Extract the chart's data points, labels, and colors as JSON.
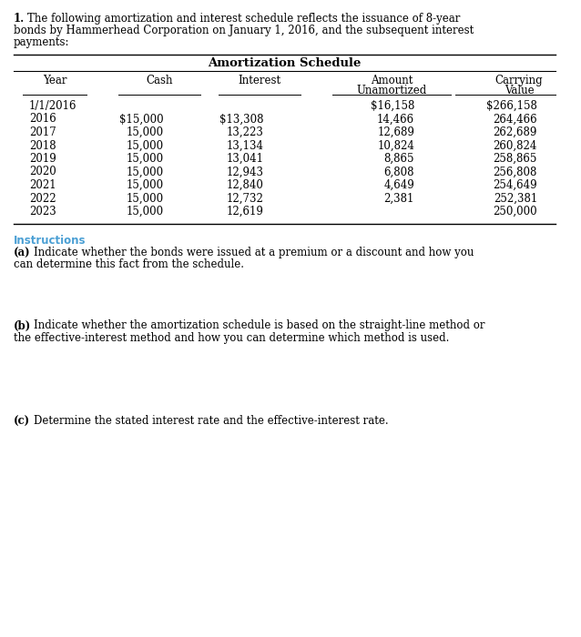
{
  "question_number": "1.",
  "question_text": "The following amortization and interest schedule reflects the issuance of 8-year\nbonds by Hammerhead Corporation on January 1, 2016, and the subsequent interest\npayments:",
  "table_title": "Amortization Schedule",
  "col_headers_line1": [
    "Year",
    "Cash",
    "Interest",
    "Amount",
    "Carrying"
  ],
  "col_headers_line2": [
    "",
    "",
    "",
    "Unamortized",
    "Value"
  ],
  "rows": [
    [
      "1/1/2016",
      "",
      "",
      "$16,158",
      "$266,158"
    ],
    [
      "2016",
      "$15,000",
      "$13,308",
      "14,466",
      "264,466"
    ],
    [
      "2017",
      "15,000",
      "13,223",
      "12,689",
      "262,689"
    ],
    [
      "2018",
      "15,000",
      "13,134",
      "10,824",
      "260,824"
    ],
    [
      "2019",
      "15,000",
      "13,041",
      "8,865",
      "258,865"
    ],
    [
      "2020",
      "15,000",
      "12,943",
      "6,808",
      "256,808"
    ],
    [
      "2021",
      "15,000",
      "12,840",
      "4,649",
      "254,649"
    ],
    [
      "2022",
      "15,000",
      "12,732",
      "2,381",
      "252,381"
    ],
    [
      "2023",
      "15,000",
      "12,619",
      "",
      "250,000"
    ]
  ],
  "instructions_label": "Instructions",
  "instructions_color": "#4a9fd4",
  "part_a_bold": "(a)",
  "part_a_line1": "Indicate whether the bonds were issued at a premium or a discount and how you",
  "part_a_line2": "can determine this fact from the schedule.",
  "part_b_bold": "(b)",
  "part_b_line1": "Indicate whether the amortization schedule is based on the straight-line method or",
  "part_b_line2": "the effective-interest method and how you can determine which method is used.",
  "part_c_bold": "(c)",
  "part_c_text": "Determine the stated interest rate and the effective-interest rate.",
  "bg_color": "#ffffff",
  "text_color": "#000000",
  "font_size": 8.5,
  "table_title_font_size": 9.5
}
